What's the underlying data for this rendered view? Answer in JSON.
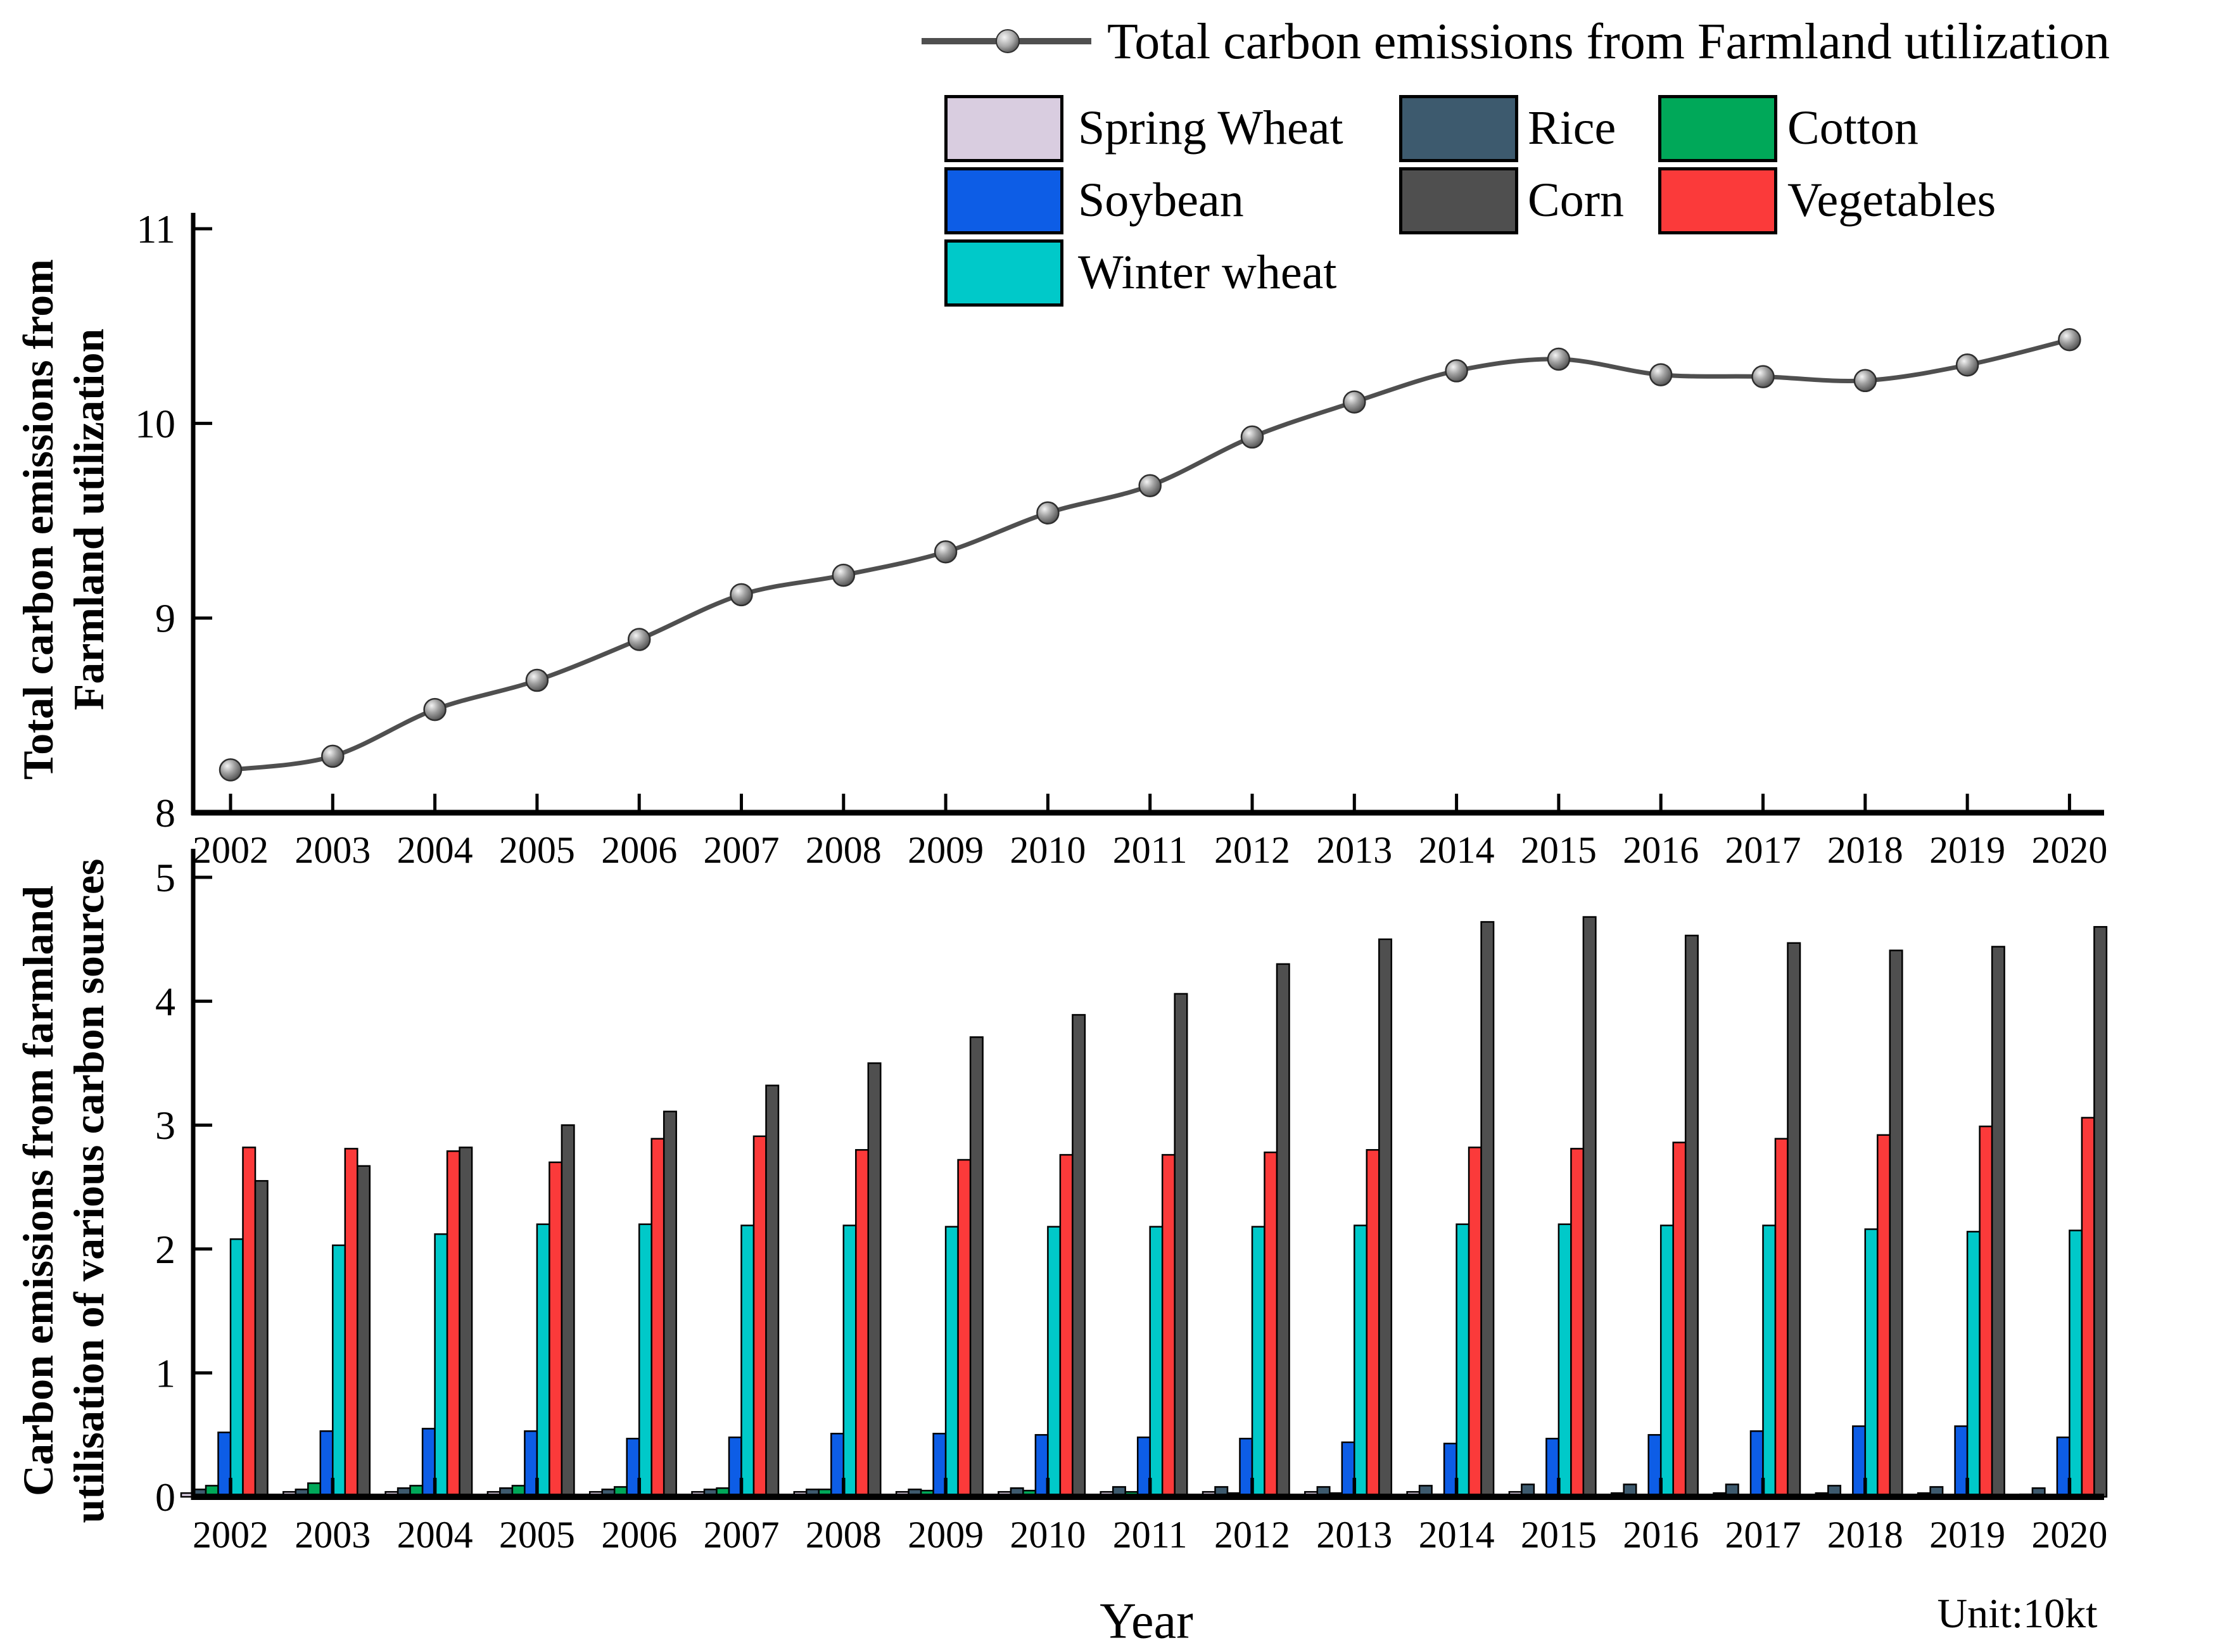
{
  "figure": {
    "background": "#ffffff"
  },
  "legend": {
    "line_entry": {
      "label": "Total carbon emissions from Farmland utilization",
      "line_color": "#4f4f4f"
    },
    "items": [
      {
        "label": "Spring Wheat",
        "color": "#d9cde0"
      },
      {
        "label": "Rice",
        "color": "#3d5a6e"
      },
      {
        "label": "Cotton",
        "color": "#00a859"
      },
      {
        "label": "Soybean",
        "color": "#0d5de6"
      },
      {
        "label": "Corn",
        "color": "#4f4f4f"
      },
      {
        "label": "Vegetables",
        "color": "#fb3a3a"
      },
      {
        "label": "Winter wheat",
        "color": "#00c9c9"
      }
    ]
  },
  "labels": {
    "top_ylabel_line1": "Total carbon emissions from",
    "top_ylabel_line2": "Farmland utilization",
    "bottom_ylabel_line1": "Carbon emissions from farmland",
    "bottom_ylabel_line2": "utilisation of various carbon sources",
    "xlabel": "Year",
    "unit_note": "Unit:10kt"
  },
  "chart_data": [
    {
      "type": "line",
      "title": "Total carbon emissions from Farmland utilization",
      "x": [
        2002,
        2003,
        2004,
        2005,
        2006,
        2007,
        2008,
        2009,
        2010,
        2011,
        2012,
        2013,
        2014,
        2015,
        2016,
        2017,
        2018,
        2019,
        2020
      ],
      "values": [
        8.22,
        8.29,
        8.53,
        8.68,
        8.89,
        9.12,
        9.22,
        9.34,
        9.54,
        9.68,
        9.93,
        10.11,
        10.27,
        10.33,
        10.25,
        10.24,
        10.22,
        10.3,
        10.43
      ],
      "ylabel": "Total carbon emissions from Farmland utilization",
      "xlabel": "",
      "ylim": [
        8,
        11
      ],
      "yticks": [
        8,
        9,
        10,
        11
      ],
      "grid": false,
      "legend_position": "top",
      "line_color": "#4f4f4f",
      "marker": "gray-sphere"
    },
    {
      "type": "bar",
      "categories": [
        2002,
        2003,
        2004,
        2005,
        2006,
        2007,
        2008,
        2009,
        2010,
        2011,
        2012,
        2013,
        2014,
        2015,
        2016,
        2017,
        2018,
        2019,
        2020
      ],
      "ylabel": "Carbon emissions from farmland utilisation of various carbon sources",
      "xlabel": "Year",
      "unit": "10kt",
      "ylim": [
        0,
        5
      ],
      "yticks": [
        0,
        1,
        2,
        3,
        4,
        5
      ],
      "grid": false,
      "bar_outline": "#000000",
      "series": [
        {
          "name": "Spring Wheat",
          "color": "#d9cde0",
          "values": [
            0.03,
            0.04,
            0.04,
            0.04,
            0.04,
            0.04,
            0.04,
            0.04,
            0.04,
            0.04,
            0.04,
            0.04,
            0.04,
            0.04,
            0.03,
            0.03,
            0.03,
            0.03,
            0.02
          ]
        },
        {
          "name": "Rice",
          "color": "#3d5a6e",
          "values": [
            0.06,
            0.06,
            0.07,
            0.07,
            0.06,
            0.06,
            0.06,
            0.06,
            0.07,
            0.08,
            0.08,
            0.08,
            0.09,
            0.1,
            0.1,
            0.1,
            0.09,
            0.08,
            0.07
          ]
        },
        {
          "name": "Cotton",
          "color": "#00a859",
          "values": [
            0.09,
            0.11,
            0.09,
            0.09,
            0.08,
            0.07,
            0.06,
            0.05,
            0.05,
            0.04,
            0.03,
            0.03,
            0.02,
            0.02,
            0.01,
            0.01,
            0.01,
            0.01,
            0.01
          ]
        },
        {
          "name": "Soybean",
          "color": "#0d5de6",
          "values": [
            0.52,
            0.53,
            0.55,
            0.53,
            0.47,
            0.48,
            0.51,
            0.51,
            0.5,
            0.48,
            0.47,
            0.44,
            0.43,
            0.47,
            0.5,
            0.53,
            0.57,
            0.57,
            0.48
          ]
        },
        {
          "name": "Winter wheat",
          "color": "#00c9c9",
          "values": [
            2.08,
            2.03,
            2.12,
            2.2,
            2.2,
            2.19,
            2.19,
            2.18,
            2.18,
            2.18,
            2.18,
            2.19,
            2.2,
            2.2,
            2.19,
            2.19,
            2.16,
            2.14,
            2.15
          ]
        },
        {
          "name": "Vegetables",
          "color": "#fb3a3a",
          "values": [
            2.82,
            2.81,
            2.79,
            2.7,
            2.89,
            2.91,
            2.8,
            2.72,
            2.76,
            2.76,
            2.78,
            2.8,
            2.82,
            2.81,
            2.86,
            2.89,
            2.92,
            2.99,
            3.06
          ]
        },
        {
          "name": "Corn",
          "color": "#4f4f4f",
          "values": [
            2.55,
            2.67,
            2.82,
            3.0,
            3.11,
            3.32,
            3.5,
            3.71,
            3.89,
            4.06,
            4.3,
            4.5,
            4.64,
            4.68,
            4.53,
            4.47,
            4.41,
            4.44,
            4.6
          ]
        }
      ]
    }
  ]
}
